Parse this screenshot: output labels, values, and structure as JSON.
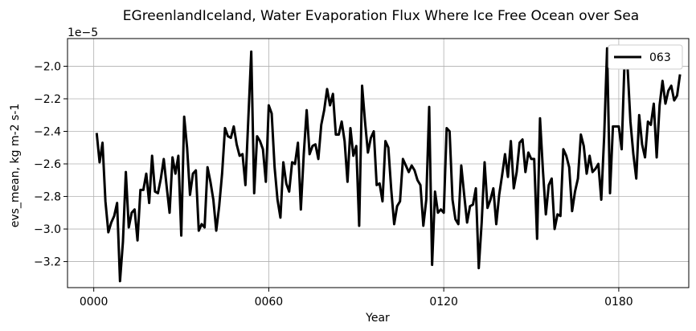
{
  "chart_data": {
    "type": "line",
    "title": "EGreenlandIceland, Water Evaporation Flux Where Ice Free Ocean over Sea",
    "xlabel": "Year",
    "ylabel": "evs_mean, kg m-2 s-1",
    "y_offset_label": "1e−5",
    "xlim": [
      -9,
      204
    ],
    "ylim": [
      -3.36,
      -1.83
    ],
    "x_ticks": [
      0,
      60,
      120,
      180
    ],
    "x_tick_labels": [
      "0000",
      "0060",
      "0120",
      "0180"
    ],
    "y_ticks": [
      -3.2,
      -3.0,
      -2.8,
      -2.6,
      -2.4,
      -2.2,
      -2.0
    ],
    "y_tick_labels": [
      "−3.2",
      "−3.0",
      "−2.8",
      "−2.6",
      "−2.4",
      "−2.2",
      "−2.0"
    ],
    "grid": true,
    "legend_position": "top-right",
    "series": [
      {
        "name": "063",
        "color": "#000000",
        "x_start": 1,
        "x_step": 1,
        "values": [
          -2.41,
          -2.59,
          -2.47,
          -2.83,
          -3.02,
          -2.96,
          -2.92,
          -2.84,
          -3.32,
          -3.08,
          -2.65,
          -2.99,
          -2.9,
          -2.88,
          -3.07,
          -2.76,
          -2.76,
          -2.66,
          -2.84,
          -2.55,
          -2.77,
          -2.78,
          -2.69,
          -2.57,
          -2.74,
          -2.9,
          -2.56,
          -2.66,
          -2.55,
          -3.04,
          -2.31,
          -2.5,
          -2.79,
          -2.66,
          -2.64,
          -3.01,
          -2.97,
          -2.99,
          -2.62,
          -2.71,
          -2.82,
          -3.01,
          -2.86,
          -2.66,
          -2.38,
          -2.43,
          -2.44,
          -2.37,
          -2.48,
          -2.55,
          -2.54,
          -2.73,
          -2.32,
          -1.91,
          -2.78,
          -2.43,
          -2.46,
          -2.51,
          -2.71,
          -2.24,
          -2.29,
          -2.62,
          -2.82,
          -2.93,
          -2.59,
          -2.72,
          -2.77,
          -2.59,
          -2.6,
          -2.47,
          -2.88,
          -2.54,
          -2.27,
          -2.54,
          -2.49,
          -2.48,
          -2.57,
          -2.36,
          -2.27,
          -2.14,
          -2.24,
          -2.17,
          -2.42,
          -2.42,
          -2.34,
          -2.46,
          -2.71,
          -2.38,
          -2.55,
          -2.49,
          -2.98,
          -2.12,
          -2.34,
          -2.53,
          -2.44,
          -2.4,
          -2.73,
          -2.72,
          -2.83,
          -2.46,
          -2.5,
          -2.76,
          -2.97,
          -2.86,
          -2.83,
          -2.57,
          -2.61,
          -2.65,
          -2.61,
          -2.64,
          -2.7,
          -2.73,
          -2.98,
          -2.82,
          -2.25,
          -3.22,
          -2.77,
          -2.9,
          -2.88,
          -2.9,
          -2.38,
          -2.4,
          -2.82,
          -2.94,
          -2.97,
          -2.61,
          -2.79,
          -2.96,
          -2.86,
          -2.85,
          -2.75,
          -3.24,
          -2.96,
          -2.59,
          -2.87,
          -2.82,
          -2.75,
          -2.97,
          -2.79,
          -2.67,
          -2.54,
          -2.68,
          -2.46,
          -2.75,
          -2.65,
          -2.47,
          -2.45,
          -2.65,
          -2.53,
          -2.57,
          -2.57,
          -3.06,
          -2.32,
          -2.64,
          -2.91,
          -2.73,
          -2.69,
          -3.0,
          -2.91,
          -2.92,
          -2.51,
          -2.55,
          -2.62,
          -2.89,
          -2.77,
          -2.69,
          -2.42,
          -2.49,
          -2.66,
          -2.55,
          -2.65,
          -2.63,
          -2.6,
          -2.82,
          -2.43,
          -1.89,
          -2.78,
          -2.37,
          -2.37,
          -2.37,
          -2.51,
          -1.96,
          -2.0,
          -2.34,
          -2.54,
          -2.69,
          -2.3,
          -2.48,
          -2.56,
          -2.34,
          -2.36,
          -2.23,
          -2.56,
          -2.24,
          -2.09,
          -2.23,
          -2.15,
          -2.12,
          -2.21,
          -2.18,
          -2.05
        ]
      }
    ]
  }
}
